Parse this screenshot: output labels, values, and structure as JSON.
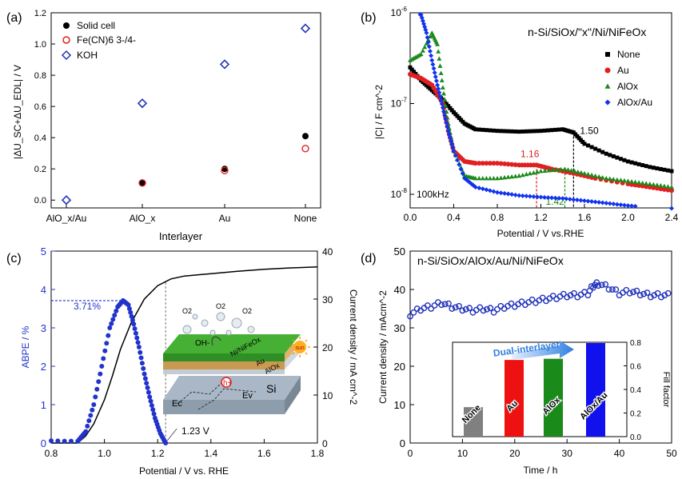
{
  "chart_data": [
    {
      "panel": "(a)",
      "type": "scatter",
      "xlabel": "Interlayer",
      "ylabel": "|ΔU_SC+ΔU_EDL| / V",
      "ylim": [
        -0.05,
        1.2
      ],
      "yticks": [
        "0.0",
        "0.2",
        "0.4",
        "0.6",
        "0.8",
        "1.0",
        "1.2"
      ],
      "categories": [
        "AlO_x/Au",
        "AlO_x",
        "Au",
        "None"
      ],
      "legend": [
        "Solid cell",
        "Fe(CN)6 3-/4-",
        "KOH"
      ],
      "series": [
        {
          "name": "Solid cell",
          "marker": "filled-circle",
          "color": "#000000",
          "values": [
            null,
            0.11,
            0.2,
            0.41
          ]
        },
        {
          "name": "Fe(CN)6 3-/4-",
          "marker": "open-circle",
          "color": "#e02020",
          "values": [
            null,
            0.11,
            0.19,
            0.33
          ]
        },
        {
          "name": "KOH",
          "marker": "open-diamond",
          "color": "#2233bb",
          "values": [
            0.0,
            0.62,
            0.87,
            1.1
          ]
        }
      ]
    },
    {
      "panel": "(b)",
      "type": "scatter",
      "title": "n-Si/SiOx/\"x\"/Ni/NiFeOx",
      "xlabel": "Potential / V vs.RHE",
      "ylabel": "|C| / F cm^-2",
      "xlim": [
        0,
        2.4
      ],
      "ylim_log10": [
        -8.15,
        -6.0
      ],
      "xticks": [
        "0.0",
        "0.4",
        "0.8",
        "1.2",
        "1.6",
        "2.0",
        "2.4"
      ],
      "frequency_label": "100kHz",
      "legend": [
        "None",
        "Au",
        "AlOx",
        "AlOx/Au"
      ],
      "annotations": [
        {
          "text": "1.50",
          "x": 1.5,
          "color": "#000000"
        },
        {
          "text": "1.16",
          "x": 1.16,
          "color": "#e02020"
        },
        {
          "text": "1.42",
          "x": 1.42,
          "color": "#1a8a1a"
        }
      ],
      "series": [
        {
          "name": "None",
          "marker": "square",
          "color": "#000000",
          "x": [
            0.0,
            0.1,
            0.2,
            0.3,
            0.4,
            0.5,
            0.6,
            0.8,
            1.0,
            1.2,
            1.4,
            1.5,
            1.6,
            1.8,
            2.0,
            2.2,
            2.4
          ],
          "y": [
            2.5e-07,
            1.8e-07,
            1.4e-07,
            1.1e-07,
            8e-08,
            6e-08,
            5.2e-08,
            5e-08,
            4.9e-08,
            5e-08,
            5.2e-08,
            4.8e-08,
            3.6e-08,
            2.8e-08,
            2.3e-08,
            2e-08,
            1.8e-08
          ]
        },
        {
          "name": "Au",
          "marker": "circle",
          "color": "#e02020",
          "x": [
            0.0,
            0.1,
            0.2,
            0.3,
            0.35,
            0.4,
            0.5,
            0.6,
            0.8,
            1.0,
            1.16,
            1.3,
            1.5,
            1.7,
            2.0,
            2.2,
            2.4
          ],
          "y": [
            2.1e-07,
            1.9e-07,
            1.6e-07,
            1e-07,
            5e-08,
            3e-08,
            2.3e-08,
            2.2e-08,
            2.2e-08,
            2.1e-08,
            2.1e-08,
            1.9e-08,
            1.7e-08,
            1.5e-08,
            1.3e-08,
            1.2e-08,
            1.1e-08
          ]
        },
        {
          "name": "AlOx",
          "marker": "triangle",
          "color": "#1a8a1a",
          "x": [
            0.0,
            0.1,
            0.2,
            0.25,
            0.3,
            0.35,
            0.4,
            0.5,
            0.6,
            0.8,
            1.0,
            1.2,
            1.42,
            1.6,
            1.8,
            2.0,
            2.2,
            2.4
          ],
          "y": [
            3e-07,
            3.5e-07,
            6e-07,
            4.5e-07,
            1.5e-07,
            6e-08,
            3e-08,
            1.6e-08,
            1.5e-08,
            1.5e-08,
            1.6e-08,
            1.8e-08,
            1.9e-08,
            1.7e-08,
            1.5e-08,
            1.4e-08,
            1.3e-08,
            1.2e-08
          ]
        },
        {
          "name": "AlOx/Au",
          "marker": "diamond",
          "color": "#1133ee",
          "x": [
            0.0,
            0.05,
            0.1,
            0.15,
            0.2,
            0.25,
            0.3,
            0.35,
            0.4,
            0.5,
            0.6,
            0.8,
            1.0,
            1.2,
            1.4,
            1.6,
            1.8,
            2.0,
            2.2,
            2.4
          ],
          "y": [
            1e-06,
            1e-06,
            9.5e-07,
            6e-07,
            3e-07,
            1.6e-07,
            9e-08,
            5e-08,
            3e-08,
            1.5e-08,
            1.2e-08,
            1.05e-08,
            9.7e-09,
            9.3e-09,
            9e-09,
            8.5e-09,
            8e-09,
            7.5e-09,
            7.2e-09,
            7e-09
          ]
        }
      ]
    },
    {
      "panel": "(c)",
      "type": "line",
      "xlabel": "Potential / V vs. RHE",
      "ylabel_left": "ABPE / %",
      "ylabel_right": "Current density / mA cm^-2",
      "xlim": [
        0.8,
        1.8
      ],
      "ylim_left": [
        0,
        5
      ],
      "ylim_right": [
        0,
        40
      ],
      "xticks": [
        "0.8",
        "1.0",
        "1.2",
        "1.4",
        "1.6",
        "1.8"
      ],
      "yticks_left": [
        "0",
        "1",
        "2",
        "3",
        "4",
        "5"
      ],
      "yticks_right": [
        "0",
        "10",
        "20",
        "30",
        "40"
      ],
      "peak_label": "3.71%",
      "peak": {
        "x": 1.07,
        "y": 3.71
      },
      "onset_label": "1.23 V",
      "onset_x": 1.23,
      "inset_labels": {
        "o2": "O2",
        "oh": "OH-",
        "h": "h+",
        "ec": "Ec",
        "ev": "Ev",
        "si": "Si",
        "alox": "AlOx",
        "au": "Au",
        "ni": "Ni/NiFeOx",
        "sun": "sun"
      },
      "series": [
        {
          "name": "ABPE",
          "axis": "left",
          "color": "#2233cc",
          "marker": "circle",
          "x": [
            0.8,
            0.85,
            0.9,
            0.93,
            0.96,
            0.99,
            1.02,
            1.05,
            1.07,
            1.09,
            1.11,
            1.13,
            1.15,
            1.17,
            1.19,
            1.21,
            1.23
          ],
          "y": [
            0.06,
            0.05,
            0.05,
            0.3,
            1.0,
            2.0,
            3.0,
            3.55,
            3.71,
            3.6,
            3.1,
            2.5,
            1.8,
            1.2,
            0.65,
            0.25,
            0.0
          ]
        },
        {
          "name": "Current density",
          "axis": "right",
          "color": "#000000",
          "x": [
            0.8,
            0.9,
            0.93,
            0.96,
            1.0,
            1.03,
            1.06,
            1.1,
            1.15,
            1.2,
            1.25,
            1.3,
            1.4,
            1.5,
            1.6,
            1.7,
            1.8
          ],
          "y": [
            0,
            0,
            1.5,
            4,
            9,
            14,
            19.5,
            25,
            30,
            32.8,
            34.2,
            34.8,
            35.3,
            35.8,
            36.2,
            36.5,
            36.7
          ]
        }
      ]
    },
    {
      "panel": "(d)",
      "type": "scatter",
      "title": "n-Si/SiOx/AlOx/Au/Ni/NiFeOx",
      "xlabel": "Time / h",
      "ylabel": "Current density / mAcm^-2",
      "xlim": [
        0,
        50
      ],
      "ylim": [
        0,
        50
      ],
      "xticks": [
        "0",
        "10",
        "20",
        "30",
        "40",
        "50"
      ],
      "yticks": [
        "0",
        "10",
        "20",
        "30",
        "40",
        "50"
      ],
      "series": [
        {
          "name": "Stability",
          "marker": "open-circle",
          "color": "#2233bb",
          "x": [
            0,
            2,
            4,
            6,
            8,
            10,
            12,
            14,
            16,
            18,
            20,
            22,
            24,
            26,
            28,
            30,
            32,
            34,
            35,
            36,
            38,
            40,
            42,
            44,
            46,
            48,
            50
          ],
          "y": [
            33.5,
            35,
            35.5,
            36.5,
            35.5,
            35,
            34.5,
            35,
            34.5,
            35.5,
            36,
            36.5,
            37,
            37.5,
            38,
            38.5,
            38.5,
            39,
            41,
            41.5,
            40.5,
            39,
            39.5,
            39,
            38.5,
            38.5,
            38.5
          ]
        }
      ],
      "inset": {
        "type": "bar",
        "ylabel": "Fill factor",
        "ylim": [
          0,
          0.8
        ],
        "yticks": [
          "0.0",
          "0.2",
          "0.4",
          "0.6",
          "0.8"
        ],
        "arrow_label": "Dual-interlayer",
        "categories": [
          "None",
          "Au",
          "AlOx",
          "AlOx/Au"
        ],
        "values": [
          0.25,
          0.65,
          0.66,
          0.82
        ],
        "colors": [
          "#808080",
          "#ee1111",
          "#1a8a1a",
          "#1111ee"
        ]
      }
    }
  ]
}
